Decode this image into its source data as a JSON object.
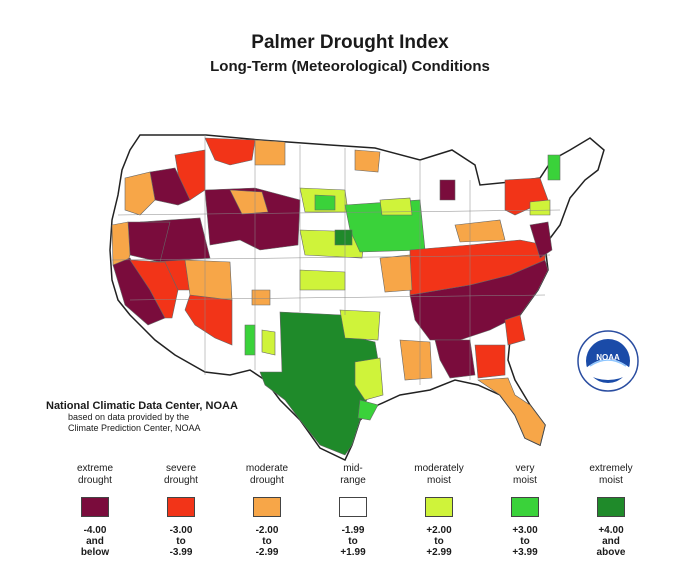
{
  "header": {
    "title": "Palmer Drought Index",
    "subtitle": "Long-Term (Meteorological) Conditions"
  },
  "credit": {
    "organization": "National Climatic Data Center, NOAA",
    "line1": "based on data provided by the",
    "line2": "Climate Prediction Center, NOAA"
  },
  "logo": {
    "text": "NOAA",
    "icon": "noaa-logo-icon"
  },
  "legend": [
    {
      "label1": "extreme",
      "label2": "drought",
      "color": "#7a0c3c",
      "r1": "-4.00",
      "r2": "and",
      "r3": "below"
    },
    {
      "label1": "severe",
      "label2": "drought",
      "color": "#f23418",
      "r1": "-3.00",
      "r2": "to",
      "r3": "-3.99"
    },
    {
      "label1": "moderate",
      "label2": "drought",
      "color": "#f7a648",
      "r1": "-2.00",
      "r2": "to",
      "r3": "-2.99"
    },
    {
      "label1": "mid-",
      "label2": "range",
      "color": "#ffffff",
      "r1": "-1.99",
      "r2": "to",
      "r3": "+1.99"
    },
    {
      "label1": "moderately",
      "label2": "moist",
      "color": "#cff33a",
      "r1": "+2.00",
      "r2": "to",
      "r3": "+2.99"
    },
    {
      "label1": "very",
      "label2": "moist",
      "color": "#3ad23a",
      "r1": "+3.00",
      "r2": "to",
      "r3": "+3.99"
    },
    {
      "label1": "extremely",
      "label2": "moist",
      "color": "#1f8a2a",
      "r1": "+4.00",
      "r2": "and",
      "r3": "above"
    }
  ]
}
